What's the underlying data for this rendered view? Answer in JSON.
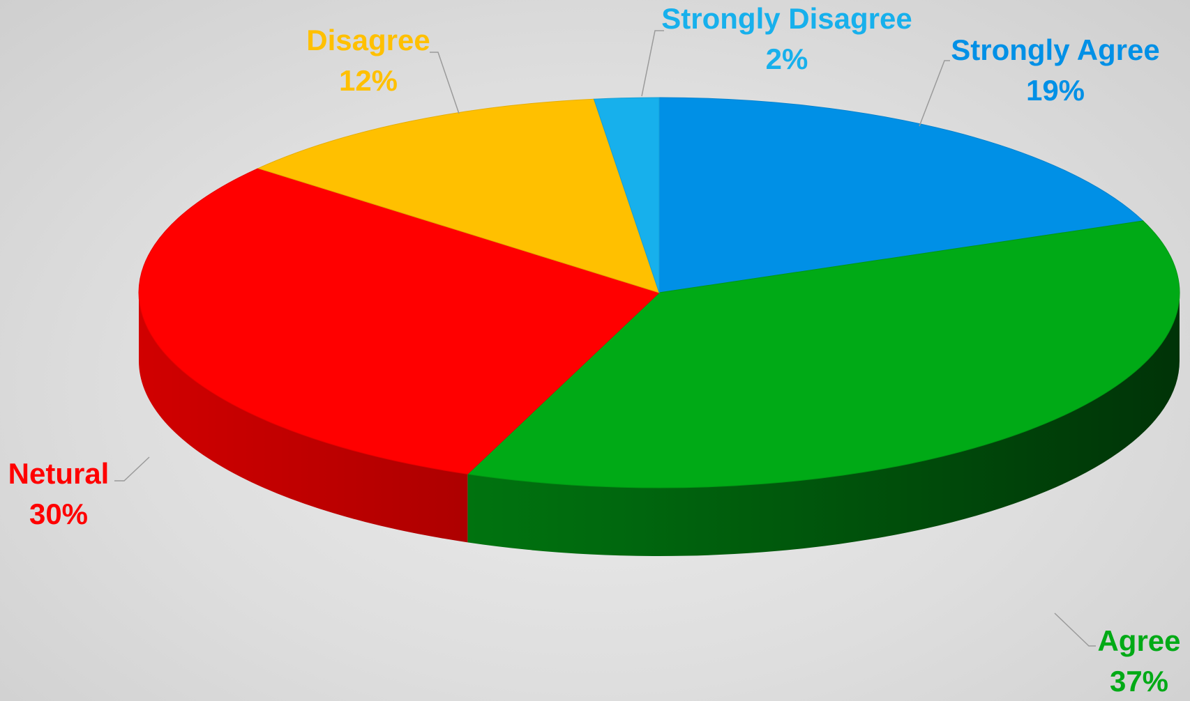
{
  "chart_data": {
    "type": "pie",
    "style": "3d",
    "start_angle_deg": 90,
    "direction": "clockwise",
    "slices": [
      {
        "label": "Strongly Agree",
        "value": 19,
        "percent_label": "19%",
        "color": "#0090E6"
      },
      {
        "label": "Agree",
        "value": 37,
        "percent_label": "37%",
        "color": "#00AA16"
      },
      {
        "label": "Netural",
        "value": 30,
        "percent_label": "30%",
        "color": "#FF0000"
      },
      {
        "label": "Disagree",
        "value": 12,
        "percent_label": "12%",
        "color": "#FFC000"
      },
      {
        "label": "Strongly Disagree",
        "value": 2,
        "percent_label": "2%",
        "color": "#17B0EC"
      }
    ],
    "legend": "none",
    "data_labels": "outside-with-leader-lines"
  }
}
